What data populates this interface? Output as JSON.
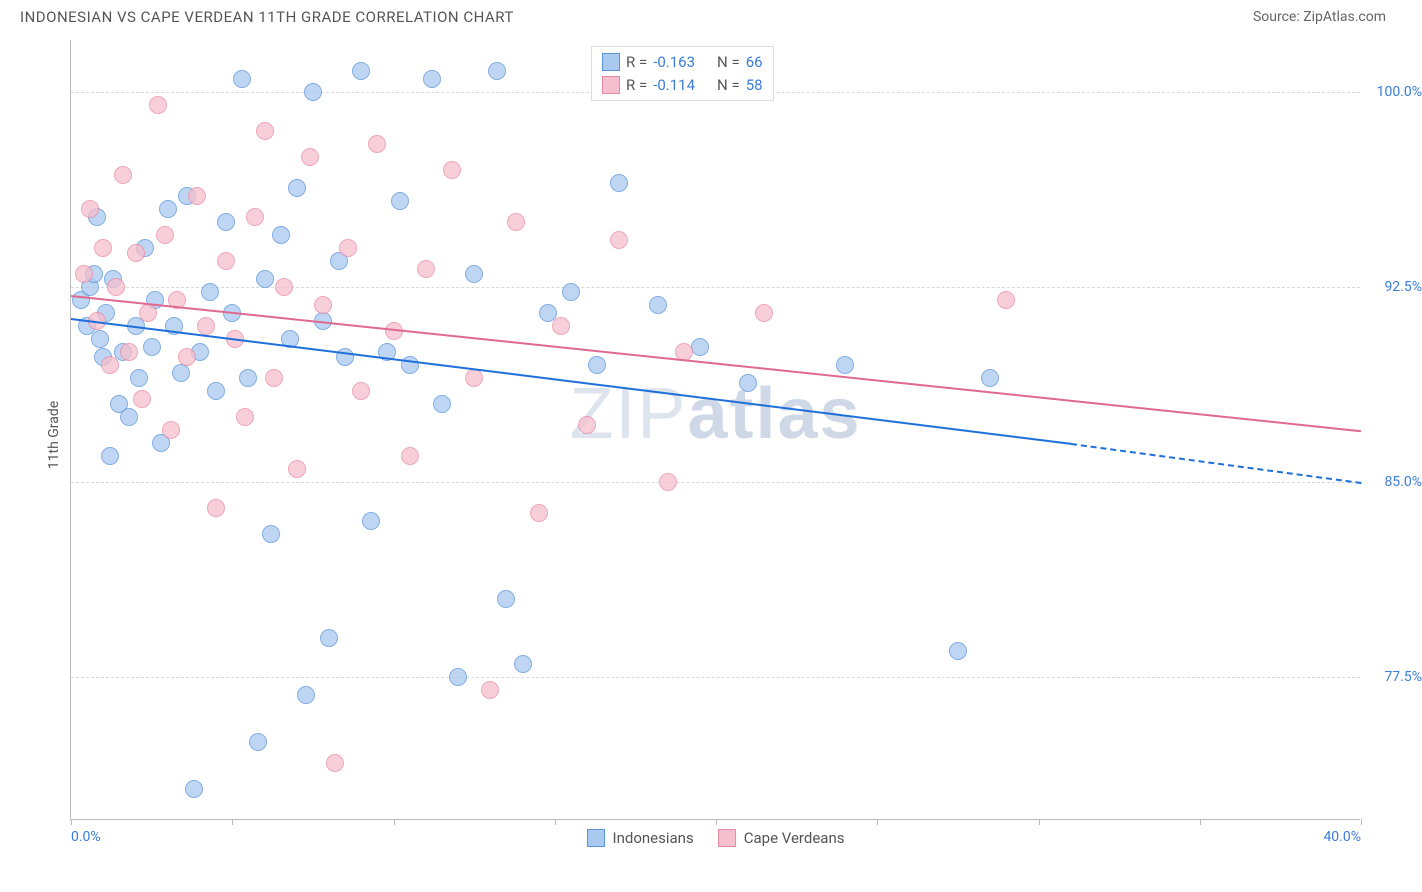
{
  "header": {
    "title": "INDONESIAN VS CAPE VERDEAN 11TH GRADE CORRELATION CHART",
    "source": "Source: ZipAtlas.com"
  },
  "chart": {
    "type": "scatter",
    "ylabel": "11th Grade",
    "watermark_thin": "ZIP",
    "watermark_bold": "atlas",
    "background_color": "#ffffff",
    "grid_color": "#d8d8d8",
    "axis_color": "#bbbbbb",
    "tick_label_color": "#3b7dd8",
    "xlim": [
      0,
      40
    ],
    "ylim": [
      72,
      102
    ],
    "xticks": [
      0,
      5,
      10,
      15,
      20,
      25,
      30,
      35,
      40
    ],
    "xtick_labels": {
      "0": "0.0%",
      "40": "40.0%"
    },
    "yticks": [
      77.5,
      85.0,
      92.5,
      100.0
    ],
    "ytick_labels": [
      "77.5%",
      "85.0%",
      "92.5%",
      "100.0%"
    ],
    "marker_radius": 9,
    "series": [
      {
        "id": "indonesians",
        "name": "Indonesians",
        "color_fill": "#a9c9ef",
        "color_stroke": "#5a93d8",
        "line_color": "#1e6fd9",
        "R": "-0.163",
        "N": "66",
        "trend": {
          "x1": 0,
          "y1": 91.3,
          "x2": 31,
          "y2": 86.5,
          "dash_x2": 40,
          "dash_y2": 85.0
        },
        "points": [
          [
            0.3,
            92.0
          ],
          [
            0.5,
            91.0
          ],
          [
            0.6,
            92.5
          ],
          [
            0.7,
            93.0
          ],
          [
            0.8,
            95.2
          ],
          [
            0.9,
            90.5
          ],
          [
            1.0,
            89.8
          ],
          [
            1.1,
            91.5
          ],
          [
            1.2,
            86.0
          ],
          [
            1.3,
            92.8
          ],
          [
            1.5,
            88.0
          ],
          [
            1.6,
            90.0
          ],
          [
            1.8,
            87.5
          ],
          [
            2.0,
            91.0
          ],
          [
            2.1,
            89.0
          ],
          [
            2.3,
            94.0
          ],
          [
            2.5,
            90.2
          ],
          [
            2.6,
            92.0
          ],
          [
            2.8,
            86.5
          ],
          [
            3.0,
            95.5
          ],
          [
            3.2,
            91.0
          ],
          [
            3.4,
            89.2
          ],
          [
            3.6,
            96.0
          ],
          [
            3.8,
            73.2
          ],
          [
            4.0,
            90.0
          ],
          [
            4.3,
            92.3
          ],
          [
            4.5,
            88.5
          ],
          [
            4.8,
            95.0
          ],
          [
            5.0,
            91.5
          ],
          [
            5.3,
            100.5
          ],
          [
            5.5,
            89.0
          ],
          [
            5.8,
            75.0
          ],
          [
            6.0,
            92.8
          ],
          [
            6.2,
            83.0
          ],
          [
            6.5,
            94.5
          ],
          [
            6.8,
            90.5
          ],
          [
            7.0,
            96.3
          ],
          [
            7.3,
            76.8
          ],
          [
            7.5,
            100.0
          ],
          [
            7.8,
            91.2
          ],
          [
            8.0,
            79.0
          ],
          [
            8.3,
            93.5
          ],
          [
            8.5,
            89.8
          ],
          [
            9.0,
            100.8
          ],
          [
            9.3,
            83.5
          ],
          [
            9.8,
            90.0
          ],
          [
            10.2,
            95.8
          ],
          [
            10.5,
            89.5
          ],
          [
            11.2,
            100.5
          ],
          [
            11.5,
            88.0
          ],
          [
            12.0,
            77.5
          ],
          [
            12.5,
            93.0
          ],
          [
            13.2,
            100.8
          ],
          [
            13.5,
            80.5
          ],
          [
            14.0,
            78.0
          ],
          [
            14.8,
            91.5
          ],
          [
            15.5,
            92.3
          ],
          [
            16.3,
            89.5
          ],
          [
            17.0,
            96.5
          ],
          [
            18.2,
            91.8
          ],
          [
            19.5,
            90.2
          ],
          [
            21.0,
            88.8
          ],
          [
            24.0,
            89.5
          ],
          [
            27.5,
            78.5
          ],
          [
            28.5,
            89.0
          ]
        ]
      },
      {
        "id": "cape_verdeans",
        "name": "Cape Verdeans",
        "color_fill": "#f6bfcd",
        "color_stroke": "#e88aa5",
        "line_color": "#e06a8f",
        "R": "-0.114",
        "N": "58",
        "trend": {
          "x1": 0,
          "y1": 92.2,
          "x2": 40,
          "y2": 87.0,
          "dash_x2": null,
          "dash_y2": null
        },
        "points": [
          [
            0.4,
            93.0
          ],
          [
            0.6,
            95.5
          ],
          [
            0.8,
            91.2
          ],
          [
            1.0,
            94.0
          ],
          [
            1.2,
            89.5
          ],
          [
            1.4,
            92.5
          ],
          [
            1.6,
            96.8
          ],
          [
            1.8,
            90.0
          ],
          [
            2.0,
            93.8
          ],
          [
            2.2,
            88.2
          ],
          [
            2.4,
            91.5
          ],
          [
            2.7,
            99.5
          ],
          [
            2.9,
            94.5
          ],
          [
            3.1,
            87.0
          ],
          [
            3.3,
            92.0
          ],
          [
            3.6,
            89.8
          ],
          [
            3.9,
            96.0
          ],
          [
            4.2,
            91.0
          ],
          [
            4.5,
            84.0
          ],
          [
            4.8,
            93.5
          ],
          [
            5.1,
            90.5
          ],
          [
            5.4,
            87.5
          ],
          [
            5.7,
            95.2
          ],
          [
            6.0,
            98.5
          ],
          [
            6.3,
            89.0
          ],
          [
            6.6,
            92.5
          ],
          [
            7.0,
            85.5
          ],
          [
            7.4,
            97.5
          ],
          [
            7.8,
            91.8
          ],
          [
            8.2,
            74.2
          ],
          [
            8.6,
            94.0
          ],
          [
            9.0,
            88.5
          ],
          [
            9.5,
            98.0
          ],
          [
            10.0,
            90.8
          ],
          [
            10.5,
            86.0
          ],
          [
            11.0,
            93.2
          ],
          [
            11.8,
            97.0
          ],
          [
            12.5,
            89.0
          ],
          [
            13.0,
            77.0
          ],
          [
            13.8,
            95.0
          ],
          [
            14.5,
            83.8
          ],
          [
            15.2,
            91.0
          ],
          [
            16.0,
            87.2
          ],
          [
            17.0,
            94.3
          ],
          [
            18.5,
            85.0
          ],
          [
            19.0,
            90.0
          ],
          [
            21.5,
            91.5
          ],
          [
            29.0,
            92.0
          ]
        ]
      }
    ],
    "legend_top": {
      "R_label": "R = ",
      "N_label": "N = "
    },
    "legend_bottom": [
      {
        "label": "Indonesians",
        "fill": "#a9c9ef",
        "stroke": "#5a93d8"
      },
      {
        "label": "Cape Verdeans",
        "fill": "#f6bfcd",
        "stroke": "#e88aa5"
      }
    ]
  }
}
